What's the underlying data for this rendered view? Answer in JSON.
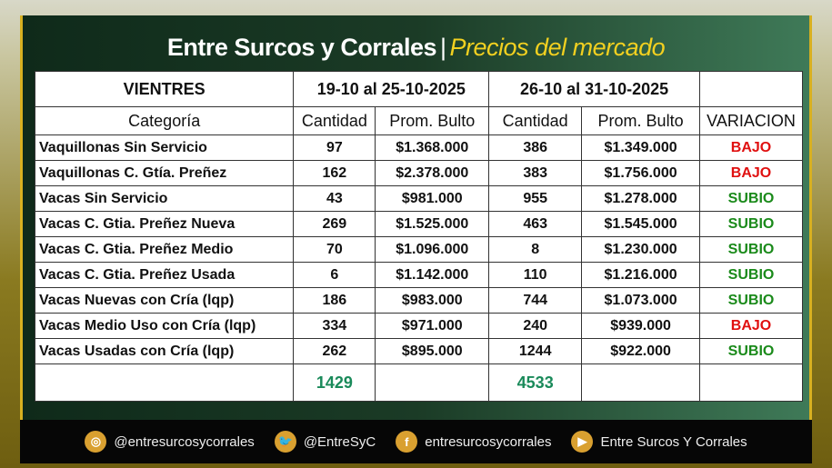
{
  "title": {
    "main": "Entre Surcos y Corrales",
    "separator": "|",
    "subtitle": "Precios del mercado"
  },
  "table": {
    "group_header": "VIENTRES",
    "period1": "19-10 al 25-10-2025",
    "period2": "26-10 al 31-10-2025",
    "columns": [
      "Categoría",
      "Cantidad",
      "Prom. Bulto",
      "Cantidad",
      "Prom. Bulto",
      "VARIACION"
    ],
    "rows": [
      [
        "Vaquillonas Sin Servicio",
        "97",
        "$1.368.000",
        "386",
        "$1.349.000",
        "BAJO"
      ],
      [
        "Vaquillonas C. Gtía. Preñez",
        "162",
        "$2.378.000",
        "383",
        "$1.756.000",
        "BAJO"
      ],
      [
        "Vacas Sin Servicio",
        "43",
        "$981.000",
        "955",
        "$1.278.000",
        "SUBIO"
      ],
      [
        "Vacas C. Gtia. Preñez Nueva",
        "269",
        "$1.525.000",
        "463",
        "$1.545.000",
        "SUBIO"
      ],
      [
        "Vacas C. Gtia. Preñez Medio",
        "70",
        "$1.096.000",
        "8",
        "$1.230.000",
        "SUBIO"
      ],
      [
        "Vacas C. Gtia. Preñez Usada",
        "6",
        "$1.142.000",
        "110",
        "$1.216.000",
        "SUBIO"
      ],
      [
        "Vacas Nuevas con Cría (lqp)",
        "186",
        "$983.000",
        "744",
        "$1.073.000",
        "SUBIO"
      ],
      [
        "Vacas Medio Uso con Cría (lqp)",
        "334",
        "$971.000",
        "240",
        "$939.000",
        "BAJO"
      ],
      [
        "Vacas Usadas con Cría (lqp)",
        "262",
        "$895.000",
        "1244",
        "$922.000",
        "SUBIO"
      ]
    ],
    "total1": "1429",
    "total2": "4533"
  },
  "colors": {
    "bajo": "#e01010",
    "subio": "#1a8a1a",
    "total": "#1a8a5a",
    "accent": "#d9a030"
  },
  "footer": [
    {
      "icon": "instagram-icon",
      "glyph": "◎",
      "label": "@entresurcosycorrales"
    },
    {
      "icon": "twitter-icon",
      "glyph": "🐦",
      "label": "@EntreSyC"
    },
    {
      "icon": "facebook-icon",
      "glyph": "f",
      "label": "entresurcosycorrales"
    },
    {
      "icon": "youtube-icon",
      "glyph": "▶",
      "label": "Entre Surcos Y Corrales"
    }
  ]
}
